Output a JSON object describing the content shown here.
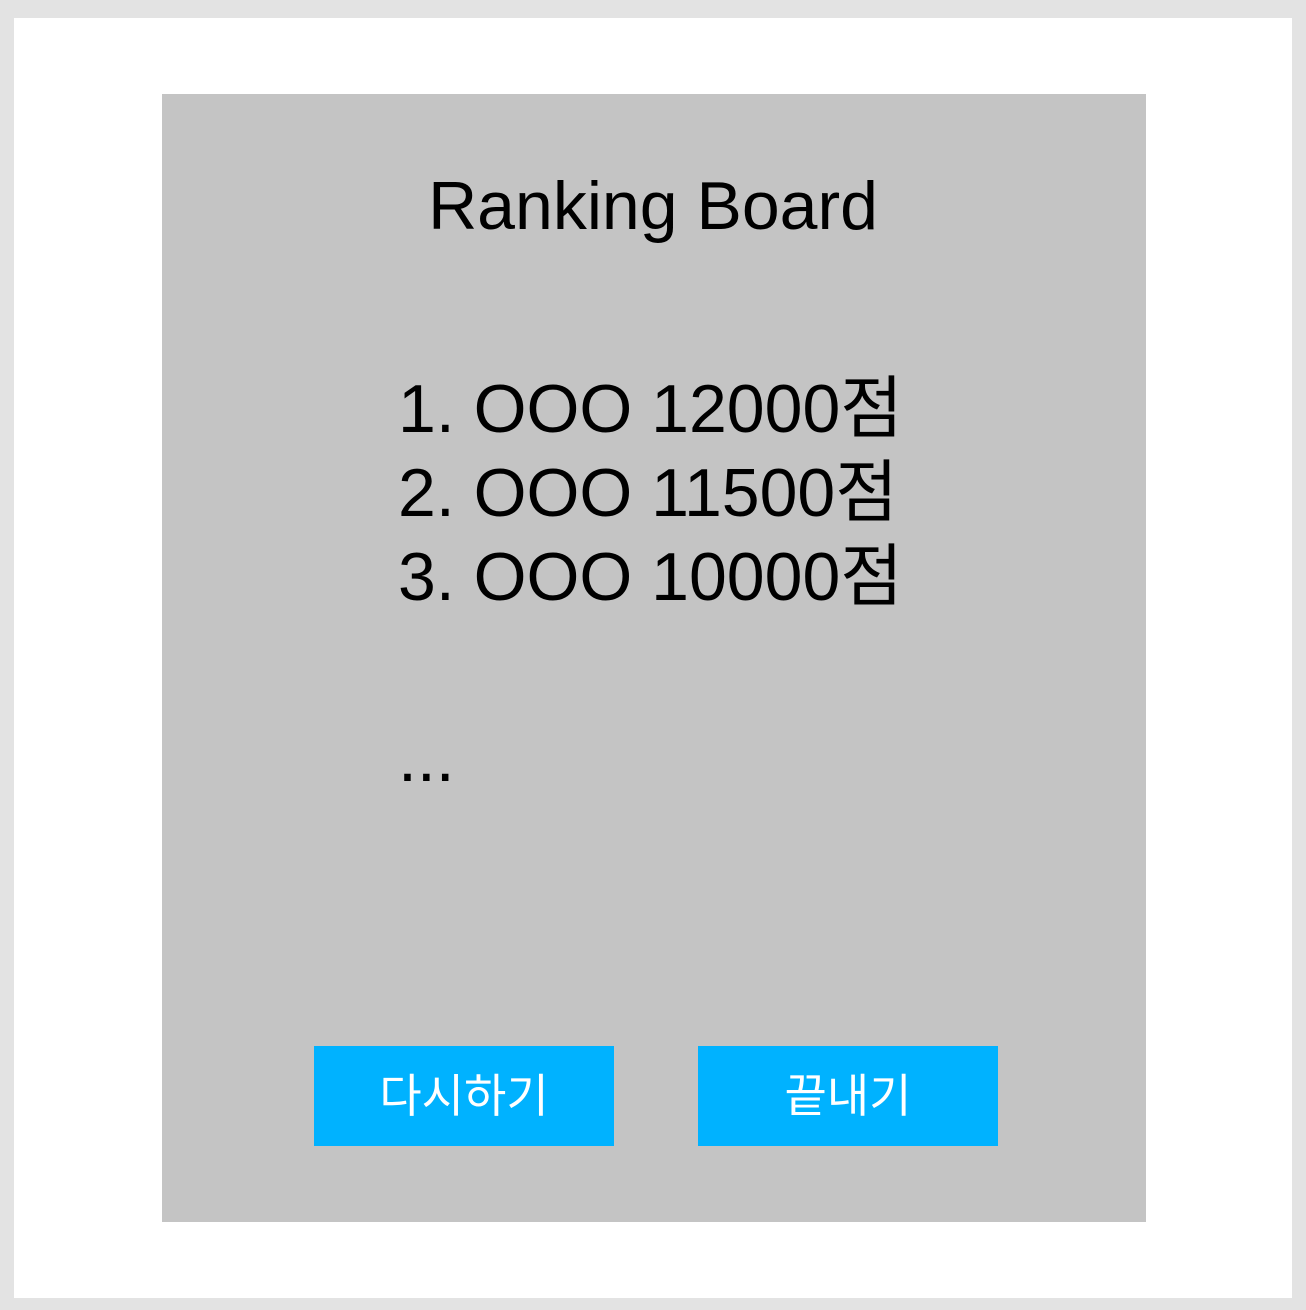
{
  "board": {
    "title": "Ranking Board",
    "rankings": [
      "1. OOO 12000점",
      "2. OOO 11500점",
      "3. OOO 10000점"
    ],
    "more": "..."
  },
  "buttons": {
    "retry_label": "다시하기",
    "quit_label": "끝내기"
  },
  "colors": {
    "background": "#e3e3e3",
    "frame": "#ffffff",
    "panel": "#c4c4c4",
    "button": "#00b2ff",
    "button_text": "#ffffff"
  }
}
